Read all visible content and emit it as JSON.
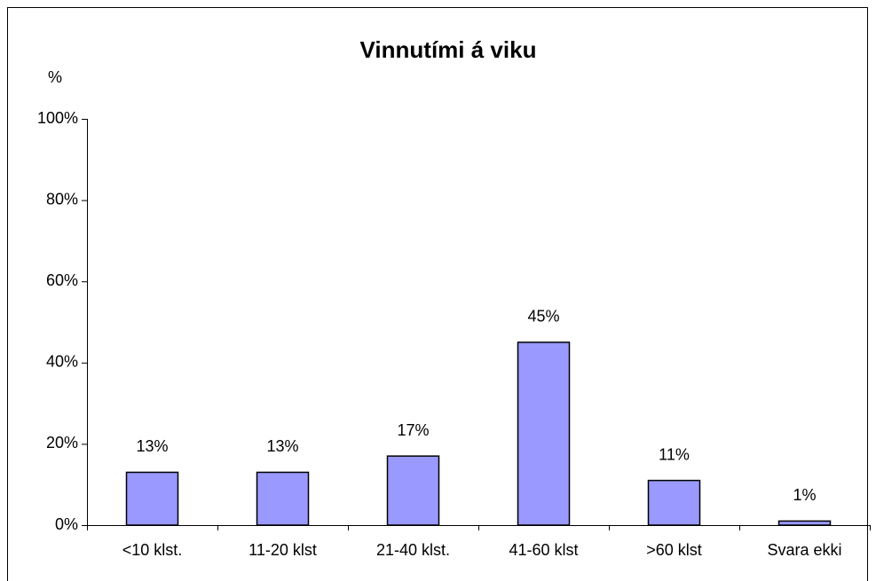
{
  "chart_data": {
    "type": "bar",
    "title": "Vinnutími á viku",
    "y_label": "%",
    "categories": [
      "<10 klst.",
      "11-20 klst",
      "21-40 klst.",
      "41-60 klst",
      ">60 klst",
      "Svara ekki"
    ],
    "values": [
      13,
      13,
      17,
      45,
      11,
      1
    ],
    "value_labels": [
      "13%",
      "13%",
      "17%",
      "45%",
      "11%",
      "1%"
    ],
    "color": "#9999ff",
    "ylim": [
      0,
      100
    ],
    "yticks": [
      {
        "value": 0,
        "label": "0%"
      },
      {
        "value": 20,
        "label": "20%"
      },
      {
        "value": 40,
        "label": "40%"
      },
      {
        "value": 60,
        "label": "60%"
      },
      {
        "value": 80,
        "label": "80%"
      },
      {
        "value": 100,
        "label": "100%"
      }
    ],
    "grid": false
  }
}
